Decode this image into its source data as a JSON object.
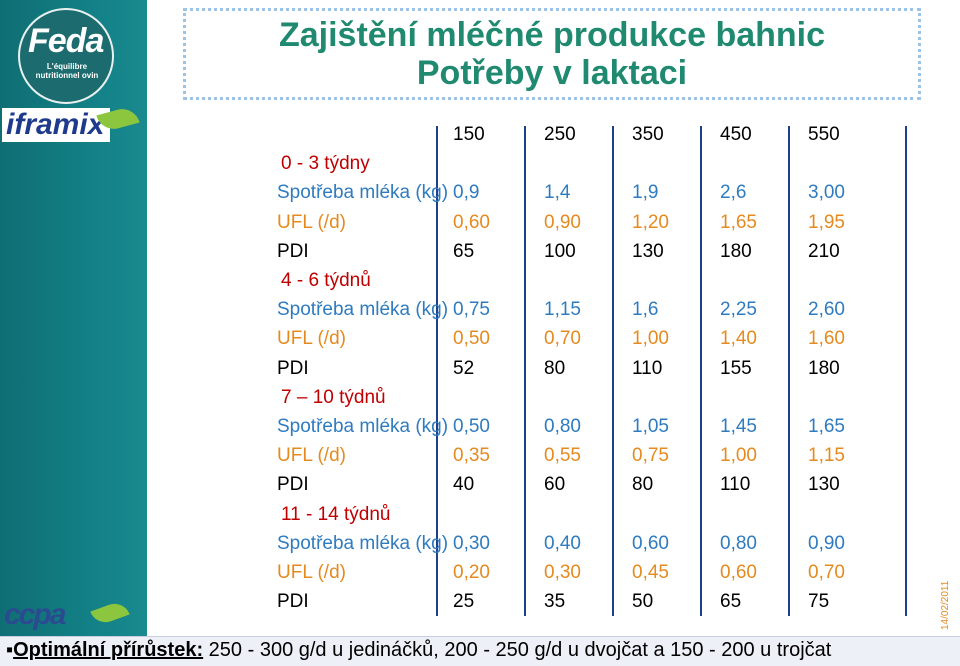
{
  "logos": {
    "feda": "Feda",
    "feda_tagline": "L'équilibre nutritionnel ovin",
    "iframix": "iframix",
    "ccpa": "ccpa"
  },
  "title": {
    "line1": "Zajištění mléčné produkce bahnic",
    "line2": "Potřeby v laktaci"
  },
  "table": {
    "columns": [
      "150",
      "250",
      "350",
      "450",
      "550"
    ],
    "sections": [
      {
        "heading": "0 - 3 týdny",
        "rows": [
          {
            "label": "Spotřeba mléka (kg)",
            "values": [
              "0,9",
              "1,4",
              "1,9",
              "2,6",
              "3,00"
            ]
          },
          {
            "label": "UFL (/d)",
            "values": [
              "0,60",
              "0,90",
              "1,20",
              "1,65",
              "1,95"
            ]
          },
          {
            "label": "PDI",
            "values": [
              "65",
              "100",
              "130",
              "180",
              "210"
            ]
          }
        ]
      },
      {
        "heading": "4 - 6 týdnů",
        "rows": [
          {
            "label": "Spotřeba mléka (kg)",
            "values": [
              "0,75",
              "1,15",
              "1,6",
              "2,25",
              "2,60"
            ]
          },
          {
            "label": "UFL (/d)",
            "values": [
              "0,50",
              "0,70",
              "1,00",
              "1,40",
              "1,60"
            ]
          },
          {
            "label": "PDI",
            "values": [
              "52",
              "80",
              "110",
              "155",
              "180"
            ]
          }
        ]
      },
      {
        "heading": "7 – 10 týdnů",
        "rows": [
          {
            "label": "Spotřeba mléka (kg)",
            "values": [
              "0,50",
              "0,80",
              "1,05",
              "1,45",
              "1,65"
            ]
          },
          {
            "label": "UFL (/d)",
            "values": [
              "0,35",
              "0,55",
              "0,75",
              "1,00",
              "1,15"
            ]
          },
          {
            "label": "PDI",
            "values": [
              "40",
              "60",
              "80",
              "110",
              "130"
            ]
          }
        ]
      },
      {
        "heading": "11 - 14 týdnů",
        "rows": [
          {
            "label": "Spotřeba mléka (kg)",
            "values": [
              "0,30",
              "0,40",
              "0,60",
              "0,80",
              "0,90"
            ]
          },
          {
            "label": "UFL (/d)",
            "values": [
              "0,20",
              "0,30",
              "0,45",
              "0,60",
              "0,70"
            ]
          },
          {
            "label": "PDI",
            "values": [
              "25",
              "35",
              "50",
              "65",
              "75"
            ]
          }
        ]
      }
    ]
  },
  "date": "14/02/2011",
  "footer": {
    "label": "Optimální přírůstek:",
    "text": " 250 - 300 g/d u jedináčků, 200 - 250 g/d u dvojčat a 150 - 200 u trojčat"
  },
  "colors": {
    "title": "#1f8a70",
    "section_heading": "#c00000",
    "milk_row": "#2e7bbf",
    "ufl_row": "#e58a1f",
    "pdi_row": "#000000"
  }
}
